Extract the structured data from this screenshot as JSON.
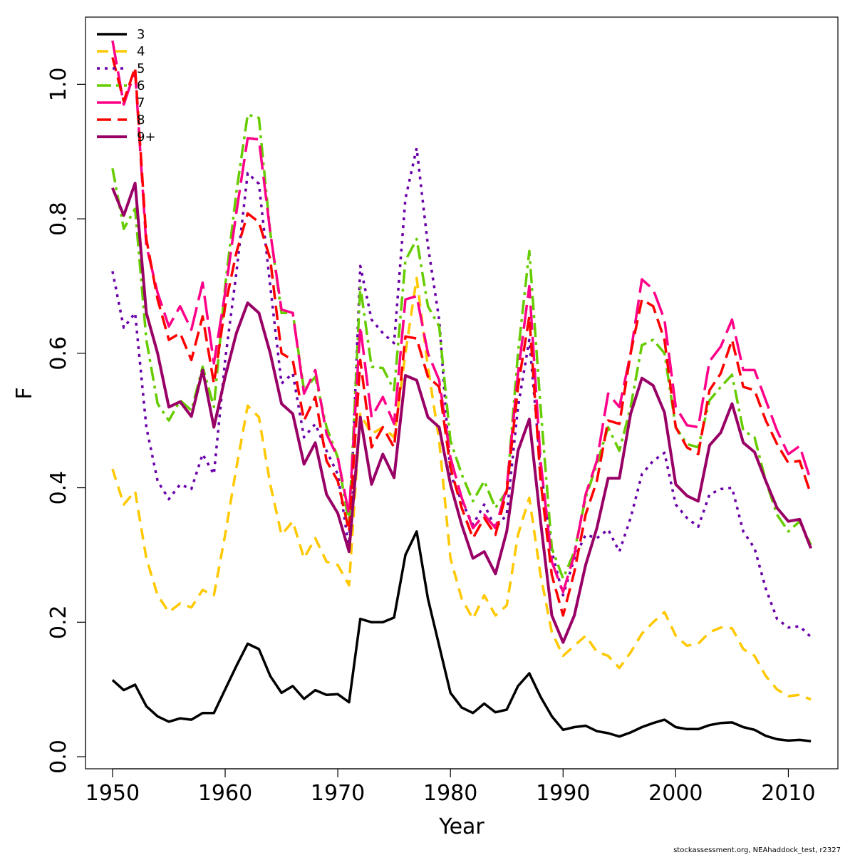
{
  "chart_data": {
    "type": "line",
    "xlabel": "Year",
    "ylabel": "F",
    "xlim": [
      1947.6,
      2014.4
    ],
    "ylim": [
      -0.018,
      1.1
    ],
    "xticks": [
      1950,
      1960,
      1970,
      1980,
      1990,
      2000,
      2010
    ],
    "xtick_labels": [
      "1950",
      "1960",
      "1970",
      "1980",
      "1990",
      "2000",
      "2010"
    ],
    "yticks": [
      0.0,
      0.2,
      0.4,
      0.6,
      0.8,
      1.0
    ],
    "ytick_labels": [
      "0.0",
      "0.2",
      "0.4",
      "0.6",
      "0.8",
      "1.0"
    ],
    "legend_position": "top-left",
    "grid": false,
    "x": [
      1950,
      1951,
      1952,
      1953,
      1954,
      1955,
      1956,
      1957,
      1958,
      1959,
      1960,
      1961,
      1962,
      1963,
      1964,
      1965,
      1966,
      1967,
      1968,
      1969,
      1970,
      1971,
      1972,
      1973,
      1974,
      1975,
      1976,
      1977,
      1978,
      1979,
      1980,
      1981,
      1982,
      1983,
      1984,
      1985,
      1986,
      1987,
      1988,
      1989,
      1990,
      1991,
      1992,
      1993,
      1994,
      1995,
      1996,
      1997,
      1998,
      1999,
      2000,
      2001,
      2002,
      2003,
      2004,
      2005,
      2006,
      2007,
      2008,
      2009,
      2010,
      2011,
      2012
    ],
    "series": [
      {
        "name": "3",
        "color": "#000000",
        "dash": "",
        "width": 3.5,
        "values": [
          0.114,
          0.099,
          0.107,
          0.075,
          0.06,
          0.052,
          0.057,
          0.055,
          0.065,
          0.065,
          0.1,
          0.135,
          0.168,
          0.16,
          0.12,
          0.095,
          0.105,
          0.086,
          0.099,
          0.092,
          0.093,
          0.081,
          0.205,
          0.2,
          0.2,
          0.207,
          0.3,
          0.335,
          0.235,
          0.165,
          0.095,
          0.073,
          0.065,
          0.079,
          0.066,
          0.07,
          0.105,
          0.124,
          0.089,
          0.06,
          0.04,
          0.044,
          0.046,
          0.038,
          0.035,
          0.03,
          0.036,
          0.044,
          0.05,
          0.055,
          0.044,
          0.041,
          0.041,
          0.047,
          0.05,
          0.051,
          0.044,
          0.04,
          0.031,
          0.026,
          0.024,
          0.025,
          0.023
        ]
      },
      {
        "name": "4",
        "color": "#FFC800",
        "dash": "16 10",
        "width": 3.5,
        "values": [
          0.428,
          0.375,
          0.395,
          0.295,
          0.24,
          0.215,
          0.228,
          0.222,
          0.248,
          0.24,
          0.33,
          0.43,
          0.522,
          0.505,
          0.405,
          0.33,
          0.35,
          0.295,
          0.325,
          0.29,
          0.285,
          0.255,
          0.51,
          0.48,
          0.49,
          0.475,
          0.6,
          0.712,
          0.58,
          0.47,
          0.295,
          0.235,
          0.205,
          0.24,
          0.21,
          0.225,
          0.33,
          0.385,
          0.27,
          0.185,
          0.15,
          0.165,
          0.18,
          0.156,
          0.15,
          0.132,
          0.155,
          0.183,
          0.2,
          0.215,
          0.18,
          0.165,
          0.168,
          0.185,
          0.192,
          0.191,
          0.16,
          0.15,
          0.12,
          0.1,
          0.09,
          0.092,
          0.085
        ]
      },
      {
        "name": "5",
        "color": "#6A00A8",
        "dash": "4 7",
        "width": 3.5,
        "values": [
          0.722,
          0.638,
          0.66,
          0.49,
          0.41,
          0.383,
          0.405,
          0.398,
          0.45,
          0.42,
          0.59,
          0.72,
          0.868,
          0.852,
          0.7,
          0.555,
          0.57,
          0.475,
          0.495,
          0.455,
          0.42,
          0.31,
          0.73,
          0.65,
          0.63,
          0.615,
          0.83,
          0.905,
          0.76,
          0.65,
          0.42,
          0.38,
          0.345,
          0.375,
          0.34,
          0.36,
          0.52,
          0.62,
          0.43,
          0.305,
          0.24,
          0.295,
          0.33,
          0.325,
          0.338,
          0.305,
          0.355,
          0.42,
          0.44,
          0.452,
          0.375,
          0.355,
          0.342,
          0.39,
          0.398,
          0.4,
          0.335,
          0.31,
          0.25,
          0.205,
          0.192,
          0.194,
          0.178
        ]
      },
      {
        "name": "6",
        "color": "#66CC00",
        "dash": "20 7 4 7",
        "width": 3.5,
        "values": [
          0.875,
          0.785,
          0.815,
          0.62,
          0.525,
          0.5,
          0.53,
          0.515,
          0.58,
          0.52,
          0.7,
          0.84,
          0.955,
          0.95,
          0.78,
          0.66,
          0.66,
          0.545,
          0.565,
          0.49,
          0.445,
          0.345,
          0.7,
          0.58,
          0.578,
          0.545,
          0.738,
          0.77,
          0.67,
          0.64,
          0.47,
          0.42,
          0.38,
          0.41,
          0.37,
          0.395,
          0.6,
          0.752,
          0.52,
          0.31,
          0.265,
          0.305,
          0.385,
          0.435,
          0.49,
          0.455,
          0.52,
          0.612,
          0.62,
          0.6,
          0.49,
          0.465,
          0.46,
          0.53,
          0.55,
          0.568,
          0.485,
          0.475,
          0.41,
          0.36,
          0.335,
          0.35,
          0.315
        ]
      },
      {
        "name": "7",
        "color": "#FF0088",
        "dash": "34 10",
        "width": 3.5,
        "values": [
          1.065,
          0.97,
          1.02,
          0.76,
          0.69,
          0.64,
          0.67,
          0.635,
          0.705,
          0.585,
          0.69,
          0.81,
          0.92,
          0.918,
          0.78,
          0.665,
          0.66,
          0.54,
          0.575,
          0.48,
          0.445,
          0.36,
          0.64,
          0.505,
          0.535,
          0.495,
          0.68,
          0.685,
          0.6,
          0.56,
          0.445,
          0.385,
          0.34,
          0.36,
          0.34,
          0.4,
          0.57,
          0.7,
          0.44,
          0.29,
          0.245,
          0.3,
          0.39,
          0.44,
          0.54,
          0.52,
          0.6,
          0.71,
          0.695,
          0.65,
          0.52,
          0.493,
          0.49,
          0.588,
          0.61,
          0.65,
          0.575,
          0.575,
          0.53,
          0.485,
          0.45,
          0.462,
          0.41
        ]
      },
      {
        "name": "8",
        "color": "#FF0000",
        "dash": "20 9",
        "width": 3.5,
        "values": [
          1.04,
          0.975,
          1.025,
          0.77,
          0.68,
          0.62,
          0.63,
          0.59,
          0.655,
          0.555,
          0.67,
          0.75,
          0.808,
          0.795,
          0.74,
          0.6,
          0.59,
          0.5,
          0.535,
          0.44,
          0.41,
          0.335,
          0.59,
          0.46,
          0.49,
          0.46,
          0.625,
          0.622,
          0.565,
          0.55,
          0.43,
          0.37,
          0.325,
          0.355,
          0.33,
          0.395,
          0.55,
          0.655,
          0.41,
          0.27,
          0.21,
          0.275,
          0.36,
          0.41,
          0.5,
          0.495,
          0.6,
          0.68,
          0.67,
          0.62,
          0.49,
          0.46,
          0.45,
          0.545,
          0.57,
          0.62,
          0.55,
          0.545,
          0.5,
          0.465,
          0.437,
          0.44,
          0.39
        ]
      },
      {
        "name": "9+",
        "color": "#990066",
        "dash": "",
        "width": 4,
        "values": [
          0.846,
          0.805,
          0.853,
          0.66,
          0.6,
          0.52,
          0.528,
          0.506,
          0.575,
          0.49,
          0.565,
          0.63,
          0.675,
          0.66,
          0.6,
          0.525,
          0.51,
          0.435,
          0.467,
          0.39,
          0.362,
          0.305,
          0.505,
          0.405,
          0.45,
          0.415,
          0.567,
          0.56,
          0.505,
          0.49,
          0.405,
          0.345,
          0.295,
          0.305,
          0.272,
          0.335,
          0.455,
          0.502,
          0.35,
          0.21,
          0.17,
          0.21,
          0.285,
          0.34,
          0.414,
          0.414,
          0.51,
          0.563,
          0.552,
          0.512,
          0.405,
          0.388,
          0.38,
          0.463,
          0.482,
          0.525,
          0.467,
          0.453,
          0.41,
          0.37,
          0.35,
          0.353,
          0.31
        ]
      }
    ]
  },
  "footer": "stockassessment.org, NEAhaddock_test, r2327"
}
